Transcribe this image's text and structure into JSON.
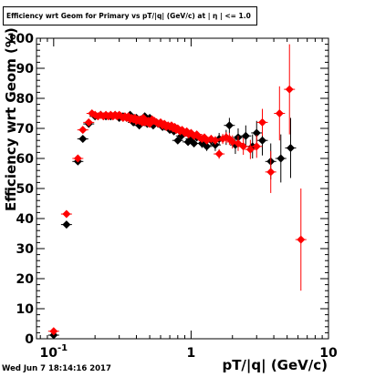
{
  "chart_data": {
    "type": "scatter",
    "title": "Efficiency wrt Geom for Primary vs pT/|q| (GeV/c) at | η | <= 1.0",
    "xlabel": "pT/|q| (GeV/c)",
    "ylabel": "Efficiency wrt Geom (%)",
    "x_scale": "log",
    "xlim": [
      0.075,
      10
    ],
    "ylim": [
      0,
      100
    ],
    "x_tick_labels": [
      {
        "value": 0.1,
        "label": "10",
        "exp": "-1"
      },
      {
        "value": 1,
        "label": "1",
        "exp": ""
      },
      {
        "value": 10,
        "label": "10",
        "exp": ""
      }
    ],
    "y_ticks": [
      0,
      10,
      20,
      30,
      40,
      50,
      60,
      70,
      80,
      90,
      100
    ],
    "series": [
      {
        "color": "#000000",
        "points": [
          [
            0.1,
            1.2,
            0.8
          ],
          [
            0.124,
            38.0,
            0.8
          ],
          [
            0.15,
            59.0,
            0.8
          ],
          [
            0.163,
            66.5,
            0.8
          ],
          [
            0.18,
            71.5,
            0.8
          ],
          [
            0.2,
            74.0,
            0.8
          ],
          [
            0.22,
            74.5,
            0.8
          ],
          [
            0.24,
            74.0,
            0.8
          ],
          [
            0.26,
            74.0,
            0.8
          ],
          [
            0.28,
            74.5,
            0.8
          ],
          [
            0.3,
            73.5,
            0.8
          ],
          [
            0.32,
            74.0,
            0.8
          ],
          [
            0.34,
            73.5,
            0.8
          ],
          [
            0.36,
            74.5,
            0.8
          ],
          [
            0.38,
            72.0,
            0.8
          ],
          [
            0.4,
            73.5,
            0.8
          ],
          [
            0.42,
            71.0,
            0.8
          ],
          [
            0.44,
            73.0,
            0.8
          ],
          [
            0.46,
            74.0,
            0.8
          ],
          [
            0.48,
            71.5,
            0.8
          ],
          [
            0.5,
            73.5,
            0.8
          ],
          [
            0.53,
            71.0,
            0.8
          ],
          [
            0.56,
            72.0,
            0.8
          ],
          [
            0.59,
            71.5,
            0.8
          ],
          [
            0.62,
            70.5,
            0.8
          ],
          [
            0.65,
            71.0,
            0.8
          ],
          [
            0.7,
            69.5,
            0.8
          ],
          [
            0.75,
            69.0,
            1.0
          ],
          [
            0.8,
            66.0,
            1.0
          ],
          [
            0.85,
            67.5,
            1.0
          ],
          [
            0.9,
            68.5,
            1.0
          ],
          [
            0.95,
            65.5,
            1.2
          ],
          [
            1.0,
            66.5,
            1.2
          ],
          [
            1.05,
            65.0,
            1.2
          ],
          [
            1.1,
            67.0,
            1.2
          ],
          [
            1.2,
            65.0,
            1.5
          ],
          [
            1.3,
            64.0,
            1.5
          ],
          [
            1.4,
            66.0,
            1.5
          ],
          [
            1.5,
            64.5,
            2.0
          ],
          [
            1.6,
            66.5,
            2.0
          ],
          [
            1.8,
            67.0,
            2.5
          ],
          [
            1.9,
            71.0,
            2.5
          ],
          [
            2.1,
            64.5,
            3.0
          ],
          [
            2.2,
            67.0,
            3.0
          ],
          [
            2.5,
            67.5,
            3.5
          ],
          [
            2.8,
            64.0,
            4.0
          ],
          [
            3.0,
            68.5,
            4.0
          ],
          [
            3.3,
            66.0,
            5.0
          ],
          [
            3.8,
            59.0,
            6.0
          ],
          [
            4.5,
            60.0,
            8.0
          ],
          [
            5.3,
            63.5,
            10.0
          ]
        ]
      },
      {
        "color": "#ff0000",
        "points": [
          [
            0.1,
            2.5,
            0.8
          ],
          [
            0.124,
            41.5,
            0.8
          ],
          [
            0.15,
            60.0,
            0.8
          ],
          [
            0.163,
            69.5,
            0.8
          ],
          [
            0.18,
            72.0,
            0.8
          ],
          [
            0.19,
            75.0,
            0.6
          ],
          [
            0.2,
            74.5,
            0.6
          ],
          [
            0.21,
            74.0,
            0.6
          ],
          [
            0.22,
            74.5,
            0.6
          ],
          [
            0.23,
            74.0,
            0.6
          ],
          [
            0.24,
            74.5,
            0.6
          ],
          [
            0.25,
            74.0,
            0.6
          ],
          [
            0.26,
            74.5,
            0.6
          ],
          [
            0.27,
            74.0,
            0.6
          ],
          [
            0.28,
            74.5,
            0.6
          ],
          [
            0.29,
            74.0,
            0.6
          ],
          [
            0.3,
            74.5,
            0.6
          ],
          [
            0.31,
            74.0,
            0.6
          ],
          [
            0.32,
            73.5,
            0.6
          ],
          [
            0.33,
            74.0,
            0.6
          ],
          [
            0.34,
            73.5,
            0.6
          ],
          [
            0.35,
            74.0,
            0.6
          ],
          [
            0.36,
            73.0,
            0.6
          ],
          [
            0.37,
            73.5,
            0.6
          ],
          [
            0.38,
            73.0,
            0.6
          ],
          [
            0.39,
            73.5,
            0.6
          ],
          [
            0.4,
            72.5,
            0.6
          ],
          [
            0.41,
            73.0,
            0.6
          ],
          [
            0.42,
            72.5,
            0.6
          ],
          [
            0.43,
            73.0,
            0.6
          ],
          [
            0.44,
            72.0,
            0.6
          ],
          [
            0.45,
            73.5,
            0.6
          ],
          [
            0.46,
            72.0,
            0.6
          ],
          [
            0.47,
            72.5,
            0.6
          ],
          [
            0.48,
            72.0,
            0.6
          ],
          [
            0.49,
            72.5,
            0.6
          ],
          [
            0.5,
            71.5,
            0.6
          ],
          [
            0.52,
            73.0,
            0.6
          ],
          [
            0.54,
            72.5,
            0.6
          ],
          [
            0.56,
            72.0,
            0.6
          ],
          [
            0.58,
            71.5,
            0.6
          ],
          [
            0.6,
            72.0,
            0.6
          ],
          [
            0.62,
            71.0,
            0.6
          ],
          [
            0.64,
            71.5,
            0.6
          ],
          [
            0.66,
            70.5,
            0.6
          ],
          [
            0.68,
            71.0,
            0.6
          ],
          [
            0.7,
            70.5,
            0.7
          ],
          [
            0.72,
            71.0,
            0.7
          ],
          [
            0.74,
            70.0,
            0.7
          ],
          [
            0.76,
            70.5,
            0.7
          ],
          [
            0.78,
            69.5,
            0.7
          ],
          [
            0.8,
            70.0,
            0.7
          ],
          [
            0.83,
            69.0,
            0.8
          ],
          [
            0.86,
            69.5,
            0.8
          ],
          [
            0.9,
            68.5,
            0.8
          ],
          [
            0.93,
            69.0,
            0.8
          ],
          [
            0.96,
            68.0,
            0.9
          ],
          [
            1.0,
            68.5,
            0.9
          ],
          [
            1.05,
            67.5,
            1.0
          ],
          [
            1.1,
            68.0,
            1.0
          ],
          [
            1.15,
            67.0,
            1.0
          ],
          [
            1.2,
            66.5,
            1.1
          ],
          [
            1.25,
            67.0,
            1.1
          ],
          [
            1.3,
            66.0,
            1.2
          ],
          [
            1.4,
            66.5,
            1.3
          ],
          [
            1.5,
            66.0,
            1.4
          ],
          [
            1.6,
            61.5,
            1.6
          ],
          [
            1.7,
            66.5,
            1.7
          ],
          [
            1.8,
            67.0,
            1.8
          ],
          [
            1.9,
            66.5,
            2.0
          ],
          [
            2.0,
            65.5,
            2.2
          ],
          [
            2.2,
            65.0,
            2.5
          ],
          [
            2.4,
            64.0,
            2.8
          ],
          [
            2.7,
            63.0,
            3.2
          ],
          [
            3.0,
            64.0,
            3.8
          ],
          [
            3.3,
            72.0,
            4.5
          ],
          [
            3.8,
            55.5,
            7.0
          ],
          [
            4.4,
            75.0,
            9.0
          ],
          [
            5.2,
            83.0,
            15.0
          ],
          [
            6.3,
            33.0,
            17.0
          ]
        ]
      }
    ]
  },
  "timestamp": "Wed Jun  7 18:14:16 2017"
}
